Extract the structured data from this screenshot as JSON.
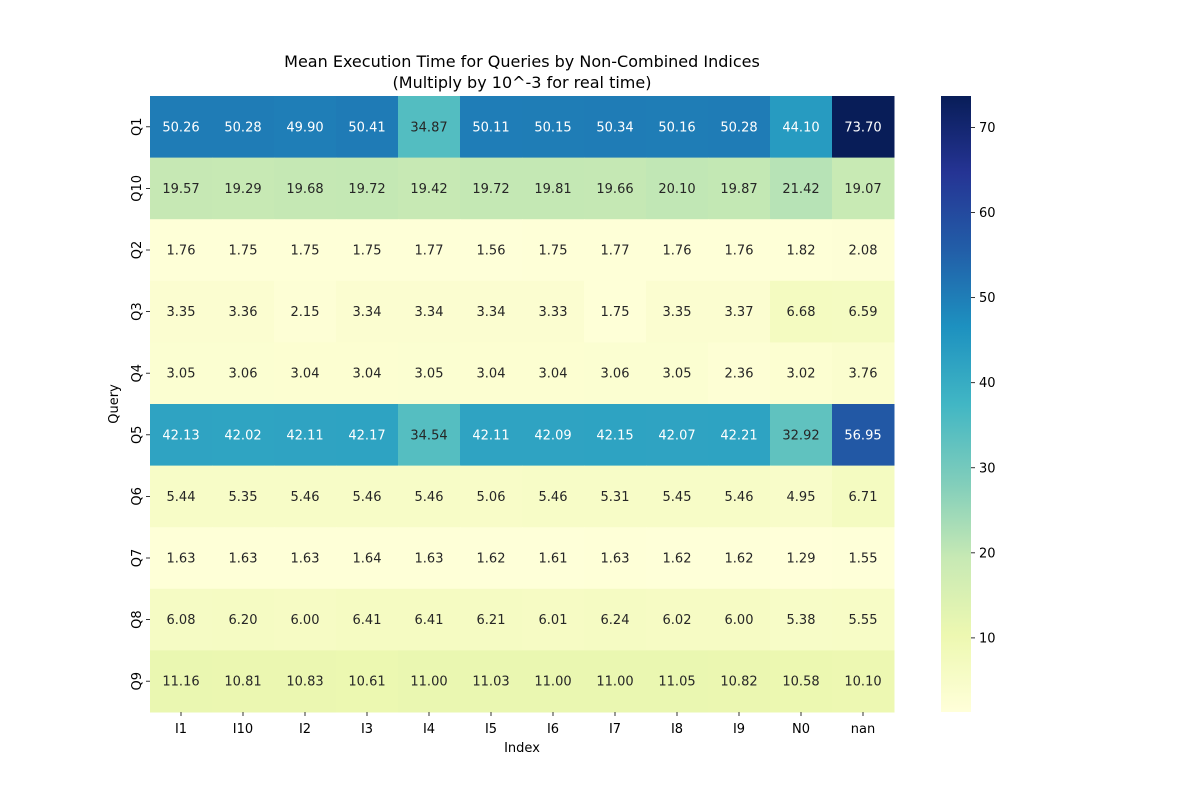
{
  "chart_data": {
    "type": "heatmap",
    "title": "Mean Execution Time for Queries by Non-Combined Indices\n(Multiply by 10^-3 for real time)",
    "xlabel": "Index",
    "ylabel": "Query",
    "x_categories": [
      "I1",
      "I10",
      "I2",
      "I3",
      "I4",
      "I5",
      "I6",
      "I7",
      "I8",
      "I9",
      "N0",
      "nan"
    ],
    "y_categories": [
      "Q1",
      "Q10",
      "Q2",
      "Q3",
      "Q4",
      "Q5",
      "Q6",
      "Q7",
      "Q8",
      "Q9"
    ],
    "values": [
      [
        50.26,
        50.28,
        49.9,
        50.41,
        34.87,
        50.11,
        50.15,
        50.34,
        50.16,
        50.28,
        44.1,
        73.7
      ],
      [
        19.57,
        19.29,
        19.68,
        19.72,
        19.42,
        19.72,
        19.81,
        19.66,
        20.1,
        19.87,
        21.42,
        19.07
      ],
      [
        1.76,
        1.75,
        1.75,
        1.75,
        1.77,
        1.56,
        1.75,
        1.77,
        1.76,
        1.76,
        1.82,
        2.08
      ],
      [
        3.35,
        3.36,
        2.15,
        3.34,
        3.34,
        3.34,
        3.33,
        1.75,
        3.35,
        3.37,
        6.68,
        6.59
      ],
      [
        3.05,
        3.06,
        3.04,
        3.04,
        3.05,
        3.04,
        3.04,
        3.06,
        3.05,
        2.36,
        3.02,
        3.76
      ],
      [
        42.13,
        42.02,
        42.11,
        42.17,
        34.54,
        42.11,
        42.09,
        42.15,
        42.07,
        42.21,
        32.92,
        56.95
      ],
      [
        5.44,
        5.35,
        5.46,
        5.46,
        5.46,
        5.06,
        5.46,
        5.31,
        5.45,
        5.46,
        4.95,
        6.71
      ],
      [
        1.63,
        1.63,
        1.63,
        1.64,
        1.63,
        1.62,
        1.61,
        1.63,
        1.62,
        1.62,
        1.29,
        1.55
      ],
      [
        6.08,
        6.2,
        6.0,
        6.41,
        6.41,
        6.21,
        6.01,
        6.24,
        6.02,
        6.0,
        5.38,
        5.55
      ],
      [
        11.16,
        10.81,
        10.83,
        10.61,
        11.0,
        11.03,
        11.0,
        11.0,
        11.05,
        10.82,
        10.58,
        10.1
      ]
    ],
    "value_range": [
      1.29,
      73.7
    ],
    "colormap": "YlGnBu",
    "colorbar_ticks": [
      10,
      20,
      30,
      40,
      50,
      60,
      70
    ],
    "annotation_format": "0.00",
    "grid": false
  }
}
